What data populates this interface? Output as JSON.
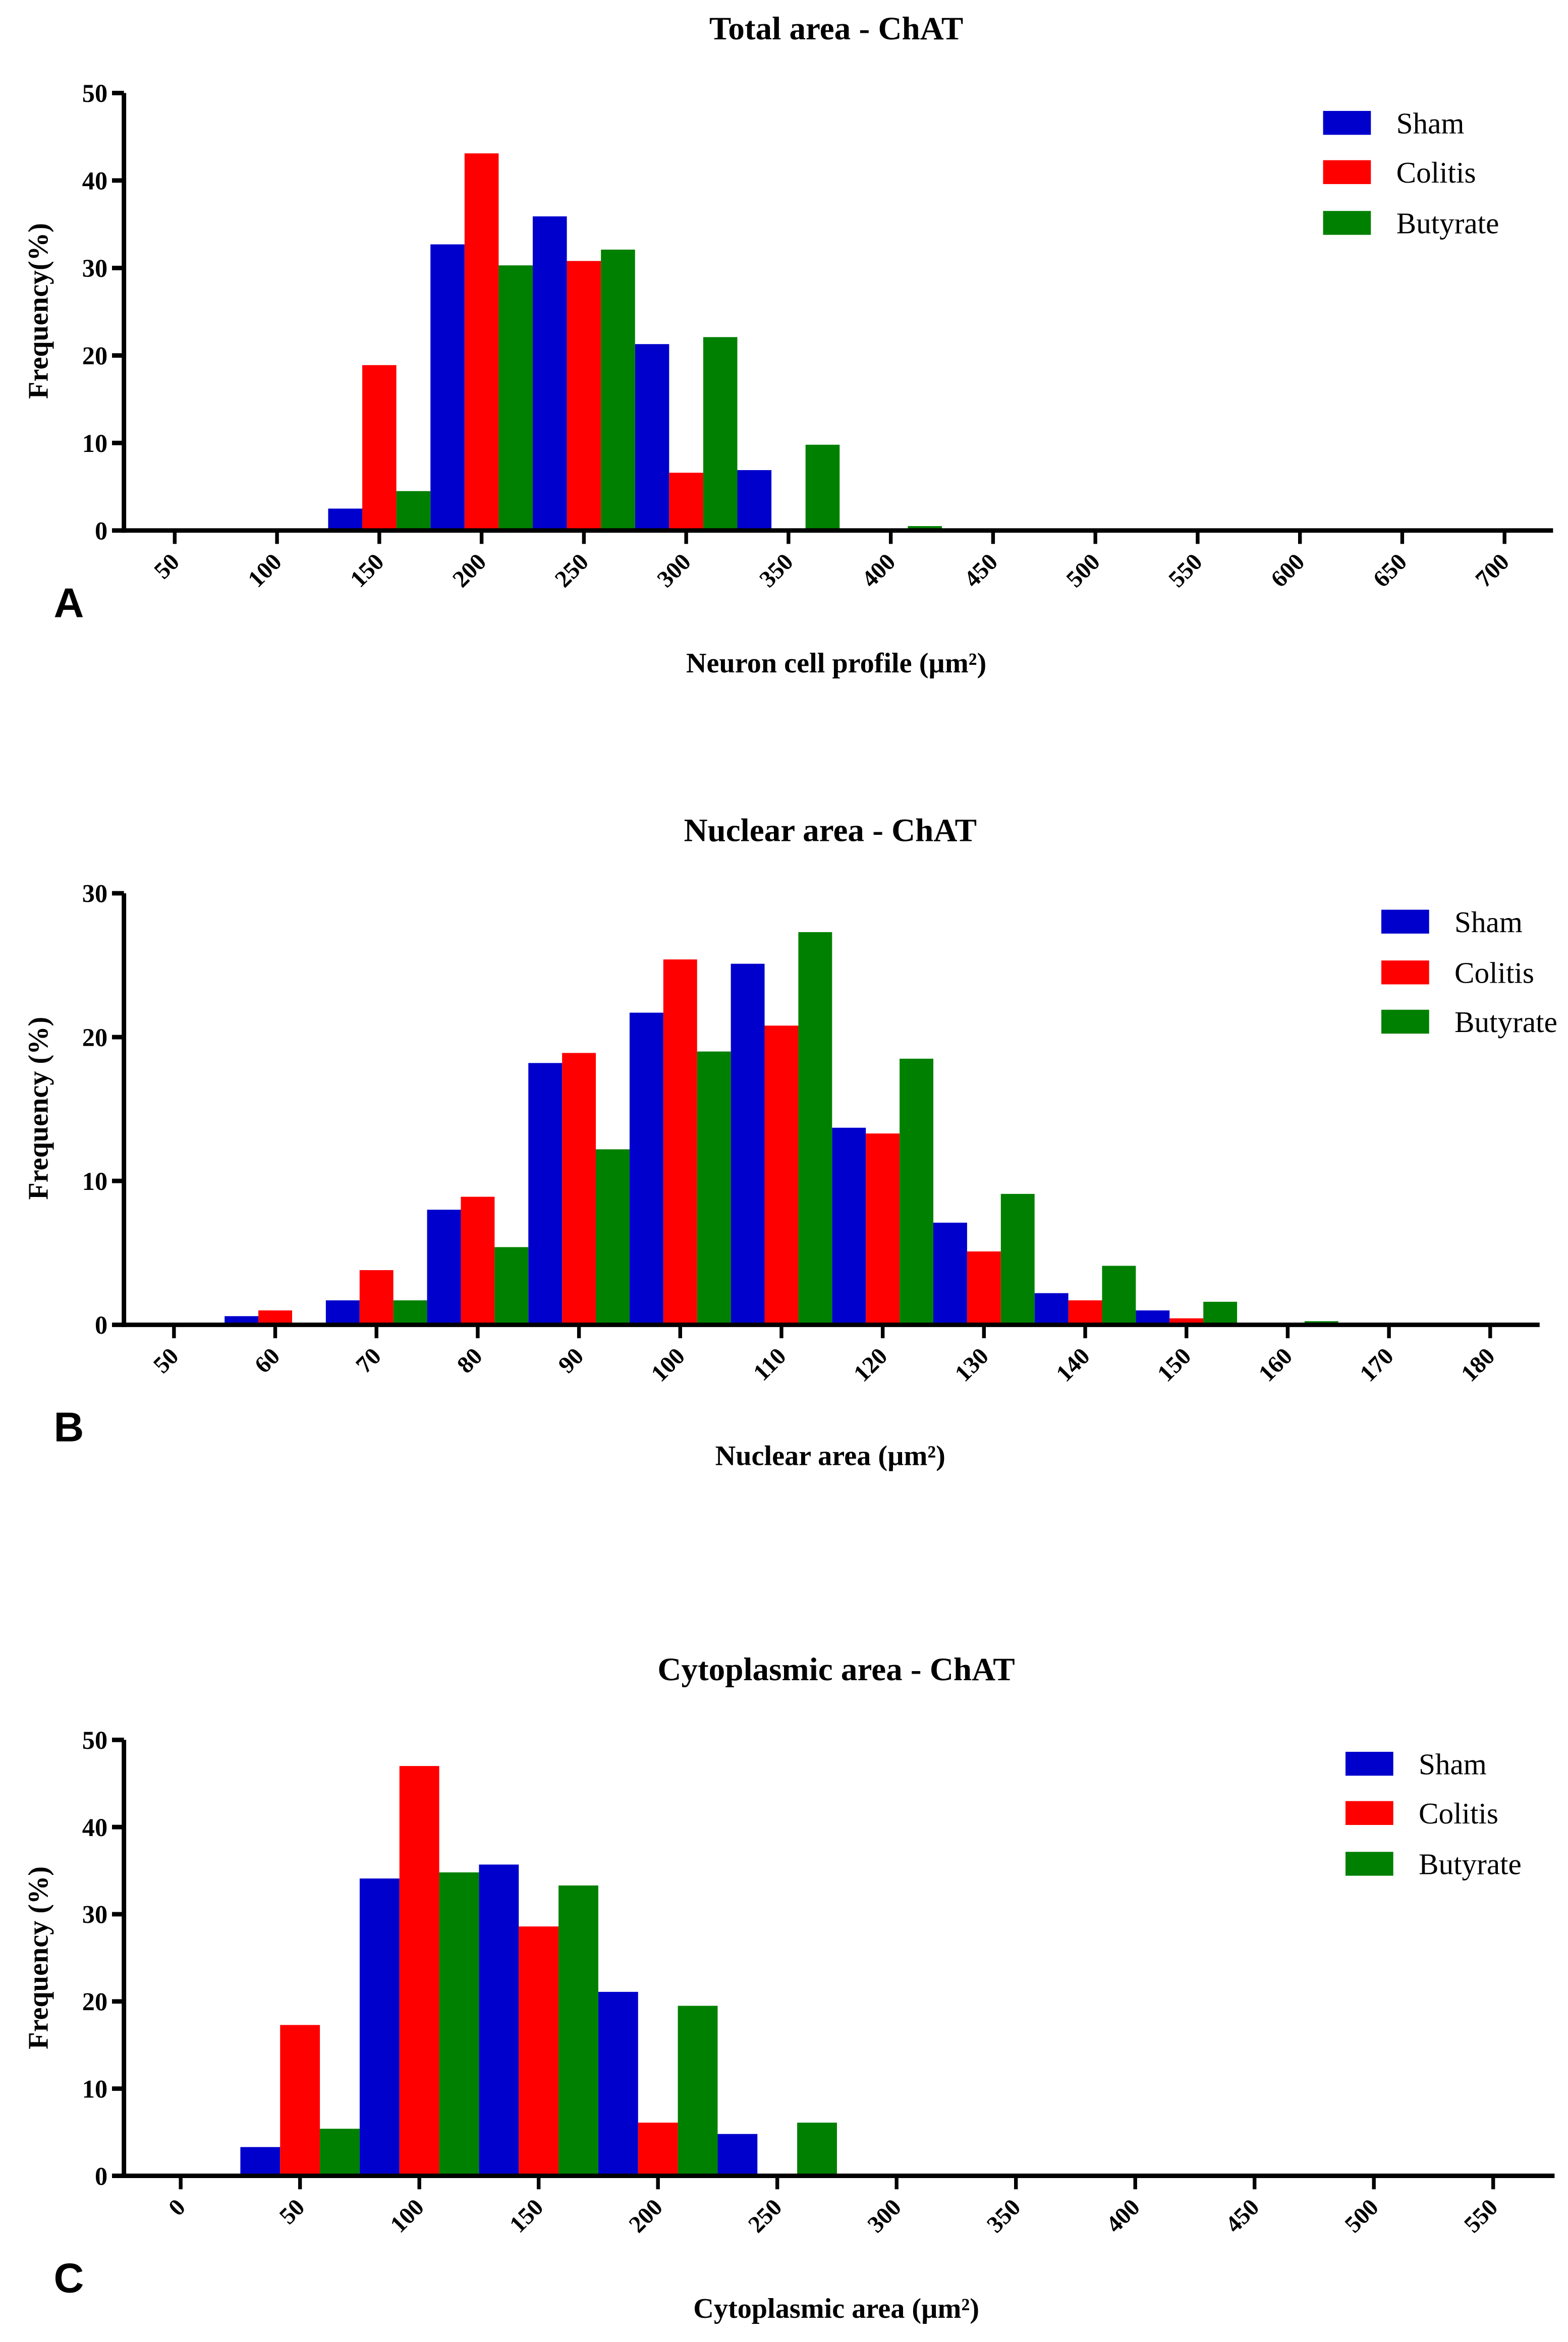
{
  "colors": {
    "Sham": "#0000CC",
    "Colitis": "#FF0000",
    "Butyrate": "#008000"
  },
  "chart_data": [
    {
      "panel": "A",
      "type": "bar",
      "title": "Total area - ChAT",
      "xlabel": "Neuron cell profile (µm²)",
      "ylabel": "Frequency(%)",
      "ylim": [
        0,
        50
      ],
      "yticks": [
        0,
        10,
        20,
        30,
        40,
        50
      ],
      "categories": [
        "50",
        "100",
        "150",
        "200",
        "250",
        "300",
        "350",
        "400",
        "450",
        "500",
        "550",
        "600",
        "650",
        "700"
      ],
      "legend": "top-right",
      "grid": false,
      "series": [
        {
          "name": "Sham",
          "values": [
            0,
            0,
            2.5,
            32.7,
            35.9,
            21.3,
            6.9,
            0,
            0,
            0,
            0,
            0,
            0,
            0
          ]
        },
        {
          "name": "Colitis",
          "values": [
            0,
            0,
            18.9,
            43.1,
            30.8,
            6.6,
            0,
            0,
            0,
            0,
            0,
            0,
            0,
            0
          ]
        },
        {
          "name": "Butyrate",
          "values": [
            0,
            0,
            4.5,
            30.3,
            32.1,
            22.1,
            9.8,
            0.5,
            0,
            0,
            0,
            0,
            0,
            0
          ]
        }
      ]
    },
    {
      "panel": "B",
      "type": "bar",
      "title": "Nuclear area - ChAT",
      "xlabel": "Nuclear area (µm²)",
      "ylabel": "Frequency (%)",
      "ylim": [
        0,
        30
      ],
      "yticks": [
        0,
        10,
        20,
        30
      ],
      "categories": [
        "50",
        "60",
        "70",
        "80",
        "90",
        "100",
        "110",
        "120",
        "130",
        "140",
        "150",
        "160",
        "170",
        "180"
      ],
      "legend": "top-right",
      "grid": false,
      "series": [
        {
          "name": "Sham",
          "values": [
            0,
            0.6,
            1.7,
            8.0,
            18.2,
            21.7,
            25.1,
            13.7,
            7.1,
            2.2,
            1.0,
            0,
            0,
            0
          ]
        },
        {
          "name": "Colitis",
          "values": [
            0,
            1.0,
            3.8,
            8.9,
            18.9,
            25.4,
            20.8,
            13.3,
            5.1,
            1.7,
            0.45,
            0,
            0,
            0
          ]
        },
        {
          "name": "Butyrate",
          "values": [
            0,
            0,
            1.7,
            5.4,
            12.2,
            19.0,
            27.3,
            18.5,
            9.1,
            4.1,
            1.6,
            0.25,
            0,
            0
          ]
        }
      ]
    },
    {
      "panel": "C",
      "type": "bar",
      "title": "Cytoplasmic area - ChAT",
      "xlabel": "Cytoplasmic area (µm²)",
      "ylabel": "Frequency (%)",
      "ylim": [
        0,
        50
      ],
      "yticks": [
        0,
        10,
        20,
        30,
        40,
        50
      ],
      "categories": [
        "0",
        "50",
        "100",
        "150",
        "200",
        "250",
        "300",
        "350",
        "400",
        "450",
        "500",
        "550"
      ],
      "legend": "top-right",
      "grid": false,
      "series": [
        {
          "name": "Sham",
          "values": [
            0,
            3.3,
            34.1,
            35.7,
            21.1,
            4.8,
            0,
            0,
            0,
            0,
            0,
            0
          ]
        },
        {
          "name": "Colitis",
          "values": [
            0,
            17.3,
            47.0,
            28.6,
            6.1,
            0,
            0,
            0,
            0,
            0,
            0,
            0
          ]
        },
        {
          "name": "Butyrate",
          "values": [
            0,
            5.4,
            34.8,
            33.3,
            19.5,
            6.1,
            0,
            0,
            0,
            0,
            0,
            0
          ]
        }
      ]
    }
  ]
}
